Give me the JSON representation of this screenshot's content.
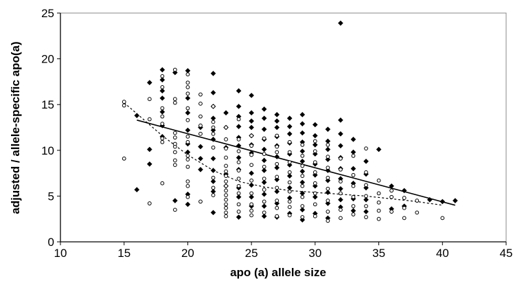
{
  "chart_data": {
    "type": "scatter",
    "xlabel": "apo (a) allele size",
    "ylabel": "adjusted / allele-specific apo(a)",
    "xlim": [
      10,
      45
    ],
    "ylim": [
      0,
      25
    ],
    "xticks": [
      10,
      15,
      20,
      25,
      30,
      35,
      40,
      45
    ],
    "yticks": [
      0,
      5,
      10,
      15,
      20,
      25
    ],
    "grid": false,
    "legend": "none",
    "series": [
      {
        "marker": "filled-diamond",
        "color": "#000000",
        "points": [
          [
            16,
            5.7
          ],
          [
            16,
            13.8
          ],
          [
            17,
            8.5
          ],
          [
            17,
            10.1
          ],
          [
            17,
            17.4
          ],
          [
            18,
            11.5
          ],
          [
            18,
            12.7
          ],
          [
            18,
            14.2
          ],
          [
            18,
            15.7
          ],
          [
            18,
            16.5
          ],
          [
            18,
            17.7
          ],
          [
            18,
            18.8
          ],
          [
            19,
            4.5
          ],
          [
            19,
            18.5
          ],
          [
            20,
            4.1
          ],
          [
            20,
            5.2
          ],
          [
            20,
            9.8
          ],
          [
            20,
            10.7
          ],
          [
            20,
            12.2
          ],
          [
            20,
            14.1
          ],
          [
            20,
            15.7
          ],
          [
            20,
            18.7
          ],
          [
            21,
            7.9
          ],
          [
            21,
            9.1
          ],
          [
            21,
            10.4
          ],
          [
            21,
            12.5
          ],
          [
            22,
            3.2
          ],
          [
            22,
            5.5
          ],
          [
            22,
            6.6
          ],
          [
            22,
            7.8
          ],
          [
            22,
            9.1
          ],
          [
            22,
            11.2
          ],
          [
            22,
            12.2
          ],
          [
            22,
            13.5
          ],
          [
            22,
            14.8
          ],
          [
            22,
            16.3
          ],
          [
            22,
            18.4
          ],
          [
            23,
            6.1
          ],
          [
            23,
            7.4
          ],
          [
            23,
            10.3
          ],
          [
            23,
            12.5
          ],
          [
            23,
            14.1
          ],
          [
            24,
            2.7
          ],
          [
            24,
            4.9
          ],
          [
            24,
            5.9
          ],
          [
            24,
            7.9
          ],
          [
            24,
            9.2
          ],
          [
            24,
            10.5
          ],
          [
            24,
            11.4
          ],
          [
            24,
            12.6
          ],
          [
            24,
            13.7
          ],
          [
            24,
            14.8
          ],
          [
            24,
            16.5
          ],
          [
            25,
            3.9
          ],
          [
            25,
            4.9
          ],
          [
            25,
            6.2
          ],
          [
            25,
            7.5
          ],
          [
            25,
            9.7
          ],
          [
            25,
            10.6
          ],
          [
            25,
            11.6
          ],
          [
            25,
            12.5
          ],
          [
            25,
            13.2
          ],
          [
            25,
            14.1
          ],
          [
            25,
            16.0
          ],
          [
            26,
            2.8
          ],
          [
            26,
            3.9
          ],
          [
            26,
            5.2
          ],
          [
            26,
            6.5
          ],
          [
            26,
            7.8
          ],
          [
            26,
            8.9
          ],
          [
            26,
            10.1
          ],
          [
            26,
            11.2
          ],
          [
            26,
            12.3
          ],
          [
            26,
            13.5
          ],
          [
            26,
            14.5
          ],
          [
            27,
            2.7
          ],
          [
            27,
            4.2
          ],
          [
            27,
            5.5
          ],
          [
            27,
            6.8
          ],
          [
            27,
            8.1
          ],
          [
            27,
            9.3
          ],
          [
            27,
            10.5
          ],
          [
            27,
            11.5
          ],
          [
            27,
            12.5
          ],
          [
            27,
            13.2
          ],
          [
            27,
            13.9
          ],
          [
            28,
            3.1
          ],
          [
            28,
            4.8
          ],
          [
            28,
            5.9
          ],
          [
            28,
            7.2
          ],
          [
            28,
            8.4
          ],
          [
            28,
            9.6
          ],
          [
            28,
            10.8
          ],
          [
            28,
            11.8
          ],
          [
            28,
            12.6
          ],
          [
            28,
            13.5
          ],
          [
            29,
            2.4
          ],
          [
            29,
            3.5
          ],
          [
            29,
            5.3
          ],
          [
            29,
            6.5
          ],
          [
            29,
            7.7
          ],
          [
            29,
            8.8
          ],
          [
            29,
            9.9
          ],
          [
            29,
            10.9
          ],
          [
            29,
            11.9
          ],
          [
            29,
            12.9
          ],
          [
            29,
            13.9
          ],
          [
            30,
            3.1
          ],
          [
            30,
            4.9
          ],
          [
            30,
            6.1
          ],
          [
            30,
            7.3
          ],
          [
            30,
            8.5
          ],
          [
            30,
            9.6
          ],
          [
            30,
            10.6
          ],
          [
            30,
            11.6
          ],
          [
            30,
            12.8
          ],
          [
            31,
            2.6
          ],
          [
            31,
            4.2
          ],
          [
            31,
            5.4
          ],
          [
            31,
            6.7
          ],
          [
            31,
            7.8
          ],
          [
            31,
            9.0
          ],
          [
            31,
            10.1
          ],
          [
            31,
            11.0
          ],
          [
            31,
            12.3
          ],
          [
            32,
            3.8
          ],
          [
            32,
            4.6
          ],
          [
            32,
            5.8
          ],
          [
            32,
            6.9
          ],
          [
            32,
            8.0
          ],
          [
            32,
            9.2
          ],
          [
            32,
            10.5
          ],
          [
            32,
            11.8
          ],
          [
            32,
            13.3
          ],
          [
            32,
            23.9
          ],
          [
            33,
            3.4
          ],
          [
            33,
            4.7
          ],
          [
            33,
            6.4
          ],
          [
            33,
            8.0
          ],
          [
            33,
            9.8
          ],
          [
            33,
            11.2
          ],
          [
            34,
            3.3
          ],
          [
            34,
            4.6
          ],
          [
            34,
            5.9
          ],
          [
            34,
            7.4
          ],
          [
            34,
            8.8
          ],
          [
            35,
            10.1
          ],
          [
            36,
            3.6
          ],
          [
            36,
            6.1
          ],
          [
            37,
            3.9
          ],
          [
            37,
            5.6
          ],
          [
            39,
            4.6
          ],
          [
            40,
            4.4
          ],
          [
            41,
            4.5
          ]
        ]
      },
      {
        "marker": "open-circle",
        "color": "#000000",
        "points": [
          [
            15,
            9.1
          ],
          [
            15,
            14.9
          ],
          [
            15,
            15.3
          ],
          [
            17,
            4.2
          ],
          [
            17,
            13.4
          ],
          [
            17,
            15.6
          ],
          [
            18,
            6.4
          ],
          [
            18,
            10.9
          ],
          [
            18,
            11.3
          ],
          [
            18,
            12.9
          ],
          [
            18,
            13.7
          ],
          [
            18,
            14.6
          ],
          [
            18,
            16.9
          ],
          [
            18,
            18.1
          ],
          [
            19,
            3.5
          ],
          [
            19,
            8.4
          ],
          [
            19,
            8.9
          ],
          [
            19,
            9.8
          ],
          [
            19,
            10.4
          ],
          [
            19,
            10.7
          ],
          [
            19,
            11.4
          ],
          [
            19,
            11.9
          ],
          [
            19,
            15.2
          ],
          [
            19,
            15.6
          ],
          [
            19,
            18.8
          ],
          [
            20,
            4.9
          ],
          [
            20,
            6.1
          ],
          [
            20,
            6.6
          ],
          [
            20,
            8.2
          ],
          [
            20,
            9.0
          ],
          [
            20,
            9.4
          ],
          [
            20,
            10.9
          ],
          [
            20,
            11.5
          ],
          [
            20,
            13.3
          ],
          [
            20,
            14.6
          ],
          [
            20,
            16.2
          ],
          [
            20,
            16.9
          ],
          [
            20,
            17.4
          ],
          [
            20,
            18.3
          ],
          [
            21,
            4.4
          ],
          [
            21,
            11.8
          ],
          [
            21,
            12.7
          ],
          [
            21,
            13.7
          ],
          [
            21,
            15.1
          ],
          [
            21,
            16.1
          ],
          [
            22,
            5.1
          ],
          [
            22,
            5.9
          ],
          [
            22,
            7.0
          ],
          [
            22,
            10.3
          ],
          [
            22,
            11.8
          ],
          [
            22,
            12.5
          ],
          [
            22,
            13.1
          ],
          [
            22,
            14.8
          ],
          [
            23,
            2.8
          ],
          [
            23,
            3.2
          ],
          [
            23,
            3.7
          ],
          [
            23,
            4.1
          ],
          [
            23,
            4.6
          ],
          [
            23,
            5.1
          ],
          [
            23,
            5.6
          ],
          [
            23,
            6.1
          ],
          [
            23,
            6.6
          ],
          [
            23,
            7.2
          ],
          [
            23,
            7.7
          ],
          [
            23,
            8.3
          ],
          [
            23,
            9.2
          ],
          [
            23,
            10.2
          ],
          [
            23,
            11.2
          ],
          [
            23,
            12.5
          ],
          [
            24,
            3.3
          ],
          [
            24,
            4.1
          ],
          [
            24,
            5.3
          ],
          [
            24,
            6.1
          ],
          [
            24,
            6.9
          ],
          [
            24,
            7.8
          ],
          [
            24,
            8.7
          ],
          [
            24,
            9.9
          ],
          [
            24,
            11.2
          ],
          [
            24,
            13.4
          ],
          [
            25,
            2.9
          ],
          [
            25,
            3.4
          ],
          [
            25,
            4.1
          ],
          [
            25,
            5.3
          ],
          [
            25,
            6.7
          ],
          [
            25,
            8.4
          ],
          [
            25,
            9.5
          ],
          [
            25,
            10.5
          ],
          [
            25,
            11.6
          ],
          [
            26,
            3.2
          ],
          [
            26,
            4.4
          ],
          [
            26,
            5.7
          ],
          [
            26,
            6.9
          ],
          [
            26,
            8.2
          ],
          [
            26,
            9.6
          ],
          [
            26,
            11.3
          ],
          [
            27,
            2.8
          ],
          [
            27,
            3.7
          ],
          [
            27,
            4.5
          ],
          [
            27,
            5.9
          ],
          [
            27,
            7.1
          ],
          [
            27,
            8.5
          ],
          [
            27,
            9.8
          ],
          [
            27,
            10.4
          ],
          [
            27,
            11.6
          ],
          [
            28,
            2.9
          ],
          [
            28,
            3.8
          ],
          [
            28,
            4.4
          ],
          [
            28,
            5.5
          ],
          [
            28,
            6.5
          ],
          [
            28,
            7.6
          ],
          [
            28,
            8.7
          ],
          [
            28,
            9.8
          ],
          [
            28,
            10.9
          ],
          [
            29,
            2.7
          ],
          [
            29,
            3.9
          ],
          [
            29,
            4.9
          ],
          [
            29,
            6.1
          ],
          [
            29,
            7.2
          ],
          [
            29,
            8.3
          ],
          [
            29,
            9.4
          ],
          [
            29,
            10.6
          ],
          [
            30,
            2.8
          ],
          [
            30,
            4.1
          ],
          [
            30,
            5.3
          ],
          [
            30,
            6.4
          ],
          [
            30,
            7.6
          ],
          [
            30,
            8.7
          ],
          [
            30,
            9.9
          ],
          [
            30,
            11.0
          ],
          [
            31,
            2.3
          ],
          [
            31,
            3.3
          ],
          [
            31,
            4.5
          ],
          [
            31,
            5.8
          ],
          [
            31,
            7.0
          ],
          [
            31,
            8.1
          ],
          [
            31,
            9.3
          ],
          [
            31,
            10.6
          ],
          [
            32,
            2.6
          ],
          [
            32,
            3.5
          ],
          [
            32,
            5.3
          ],
          [
            32,
            6.6
          ],
          [
            32,
            7.9
          ],
          [
            32,
            9.1
          ],
          [
            33,
            3.0
          ],
          [
            33,
            3.9
          ],
          [
            33,
            4.9
          ],
          [
            33,
            6.1
          ],
          [
            33,
            7.3
          ],
          [
            33,
            9.4
          ],
          [
            34,
            2.7
          ],
          [
            34,
            3.9
          ],
          [
            34,
            5.0
          ],
          [
            34,
            6.2
          ],
          [
            34,
            7.6
          ],
          [
            34,
            10.2
          ],
          [
            35,
            2.5
          ],
          [
            35,
            3.4
          ],
          [
            35,
            4.3
          ],
          [
            35,
            5.3
          ],
          [
            35,
            6.7
          ],
          [
            36,
            3.3
          ],
          [
            36,
            4.9
          ],
          [
            36,
            5.6
          ],
          [
            37,
            2.6
          ],
          [
            37,
            3.7
          ],
          [
            37,
            4.8
          ],
          [
            38,
            3.2
          ],
          [
            38,
            4.5
          ],
          [
            40,
            2.6
          ]
        ]
      }
    ],
    "lines": [
      {
        "style": "solid",
        "fit": "linear",
        "x": [
          16,
          41
        ],
        "y": [
          13.3,
          4.0
        ]
      },
      {
        "style": "dotted",
        "fit": "curve",
        "x": [
          15,
          16,
          17,
          18,
          20,
          22,
          24,
          26,
          28,
          30,
          32,
          34,
          36,
          38,
          40
        ],
        "y": [
          15.2,
          14.0,
          12.8,
          11.6,
          9.5,
          7.8,
          6.6,
          6.0,
          5.6,
          5.4,
          5.2,
          5.0,
          4.7,
          4.4,
          4.0
        ]
      }
    ]
  }
}
